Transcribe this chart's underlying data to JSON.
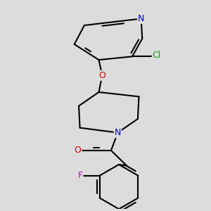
{
  "background_color": "#dcdcdc",
  "bond_color": "#000000",
  "bond_width": 1.5,
  "dbo": 0.012,
  "atom_colors": {
    "N": "#0000cc",
    "O": "#cc0000",
    "Cl": "#00aa00",
    "F": "#cc00aa"
  },
  "font_size": 8.5,
  "figsize": [
    3.0,
    3.0
  ],
  "dpi": 100
}
